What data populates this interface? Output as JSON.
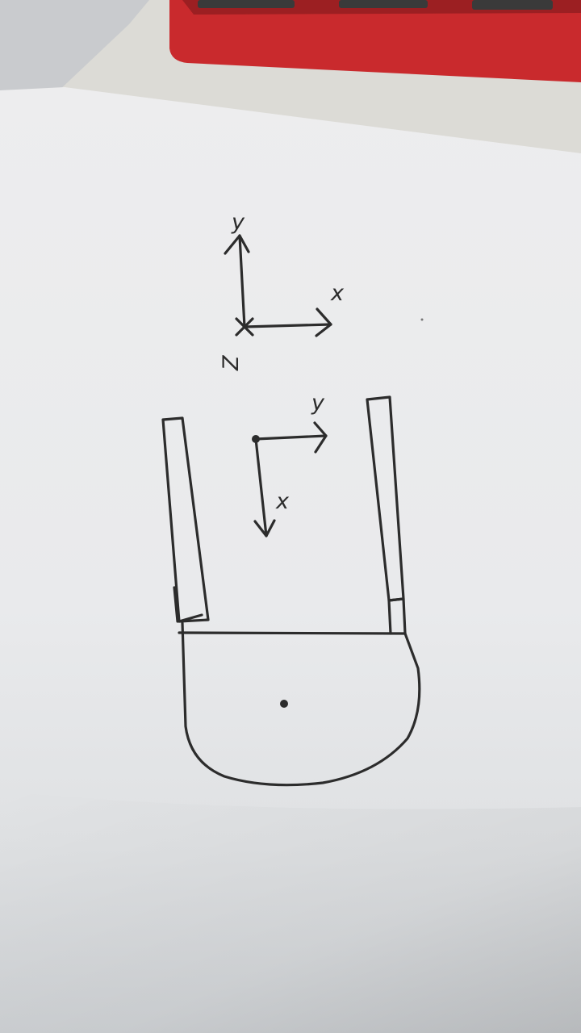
{
  "colors": {
    "desk": "#e1e0dc",
    "paper": "#eeeff0",
    "paper_shadow": "#c9cccf",
    "keyboard": "#c8262a",
    "ink": "#2c2c2c"
  },
  "world_axes": {
    "y_label": "y",
    "x_label": "x",
    "z_label": "Z"
  },
  "gripper_axes": {
    "y_label": "y",
    "x_label": "x"
  }
}
